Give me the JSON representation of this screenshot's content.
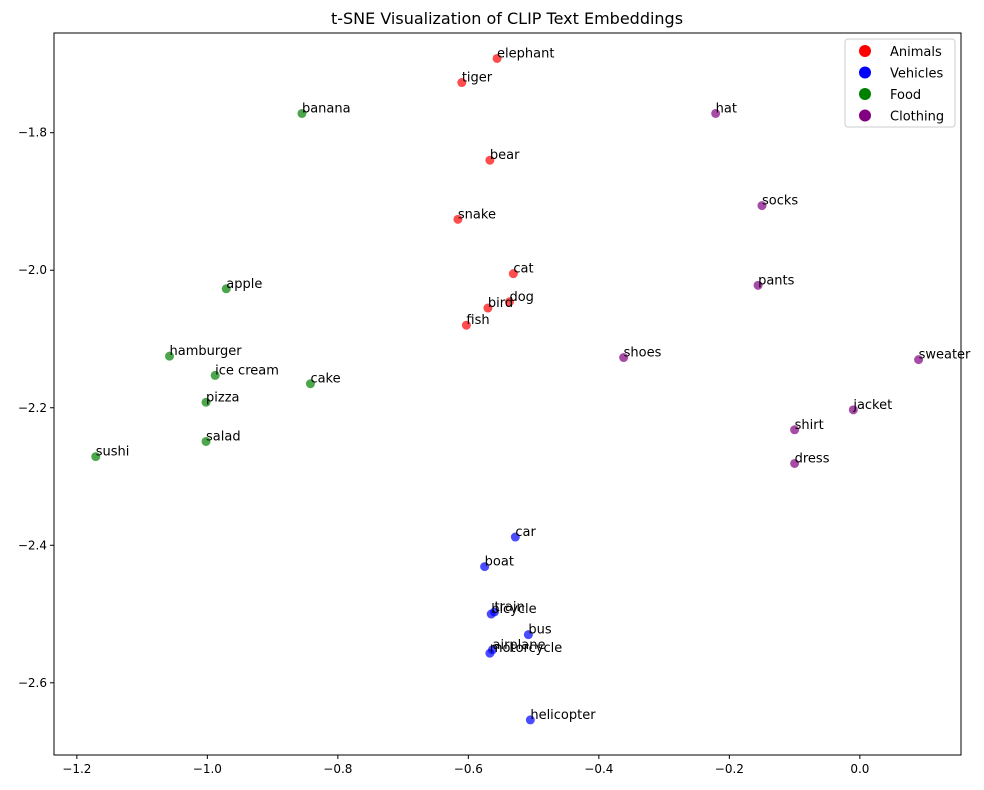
{
  "chart_data": {
    "type": "scatter",
    "title": "t-SNE Visualization of CLIP Text Embeddings",
    "xlabel": "",
    "ylabel": "",
    "xlim": [
      -1.235,
      0.155
    ],
    "ylim": [
      -2.705,
      -1.655
    ],
    "xticks": [
      -1.2,
      -1.0,
      -0.8,
      -0.6,
      -0.4,
      -0.2,
      0.0
    ],
    "xtick_labels": [
      "−1.2",
      "−1.0",
      "−0.8",
      "−0.6",
      "−0.4",
      "−0.2",
      "0.0"
    ],
    "yticks": [
      -2.6,
      -2.4,
      -2.2,
      -2.0,
      -1.8
    ],
    "ytick_labels": [
      "−2.6",
      "−2.4",
      "−2.2",
      "−2.0",
      "−1.8"
    ],
    "grid": false,
    "legend_position": "top-right",
    "series": [
      {
        "name": "Animals",
        "color": "#ff0000",
        "points": [
          {
            "label": "elephant",
            "x": -0.556,
            "y": -1.692
          },
          {
            "label": "tiger",
            "x": -0.61,
            "y": -1.727
          },
          {
            "label": "bear",
            "x": -0.567,
            "y": -1.84
          },
          {
            "label": "snake",
            "x": -0.616,
            "y": -1.926
          },
          {
            "label": "cat",
            "x": -0.531,
            "y": -2.005
          },
          {
            "label": "dog",
            "x": -0.537,
            "y": -2.046
          },
          {
            "label": "bird",
            "x": -0.57,
            "y": -2.055
          },
          {
            "label": "fish",
            "x": -0.603,
            "y": -2.08
          }
        ]
      },
      {
        "name": "Vehicles",
        "color": "#0000ff",
        "points": [
          {
            "label": "car",
            "x": -0.528,
            "y": -2.388
          },
          {
            "label": "boat",
            "x": -0.575,
            "y": -2.431
          },
          {
            "label": "train",
            "x": -0.56,
            "y": -2.497
          },
          {
            "label": "bicycle",
            "x": -0.565,
            "y": -2.5
          },
          {
            "label": "bus",
            "x": -0.508,
            "y": -2.53
          },
          {
            "label": "airplane",
            "x": -0.563,
            "y": -2.552
          },
          {
            "label": "motorcycle",
            "x": -0.567,
            "y": -2.557
          },
          {
            "label": "helicopter",
            "x": -0.505,
            "y": -2.654
          }
        ]
      },
      {
        "name": "Food",
        "color": "#008000",
        "points": [
          {
            "label": "banana",
            "x": -0.855,
            "y": -1.772
          },
          {
            "label": "apple",
            "x": -0.971,
            "y": -2.027
          },
          {
            "label": "hamburger",
            "x": -1.058,
            "y": -2.125
          },
          {
            "label": "ice cream",
            "x": -0.988,
            "y": -2.153
          },
          {
            "label": "cake",
            "x": -0.842,
            "y": -2.165
          },
          {
            "label": "pizza",
            "x": -1.002,
            "y": -2.192
          },
          {
            "label": "salad",
            "x": -1.002,
            "y": -2.249
          },
          {
            "label": "sushi",
            "x": -1.171,
            "y": -2.271
          }
        ]
      },
      {
        "name": "Clothing",
        "color": "#800080",
        "points": [
          {
            "label": "hat",
            "x": -0.221,
            "y": -1.772
          },
          {
            "label": "socks",
            "x": -0.15,
            "y": -1.906
          },
          {
            "label": "pants",
            "x": -0.156,
            "y": -2.022
          },
          {
            "label": "shoes",
            "x": -0.362,
            "y": -2.127
          },
          {
            "label": "sweater",
            "x": 0.09,
            "y": -2.13
          },
          {
            "label": "jacket",
            "x": -0.01,
            "y": -2.203
          },
          {
            "label": "shirt",
            "x": -0.1,
            "y": -2.232
          },
          {
            "label": "dress",
            "x": -0.1,
            "y": -2.281
          }
        ]
      }
    ]
  }
}
